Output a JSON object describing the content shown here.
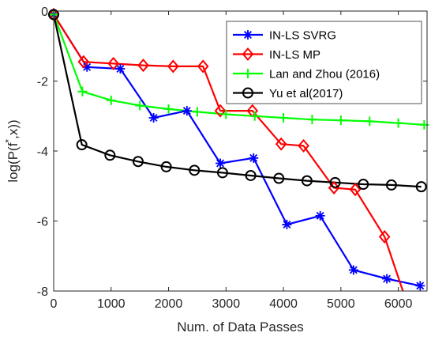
{
  "chart_data": {
    "type": "line",
    "xlabel": "Num. of Data Passes",
    "ylabel": "log(P(f*,x))",
    "ylabel_base": "log(P(f",
    "ylabel_sup": "*",
    "ylabel_tail": ",x))",
    "xlim": [
      0,
      6500
    ],
    "ylim": [
      -8,
      0
    ],
    "xticks": [
      "0",
      "1000",
      "2000",
      "3000",
      "4000",
      "5000",
      "6000"
    ],
    "yticks": [
      "0",
      "-2",
      "-4",
      "-6",
      "-8"
    ],
    "legend_position": "top-right",
    "series": [
      {
        "name": "IN-LS SVRG",
        "color": "#0000ff",
        "marker": "asterisk",
        "x": [
          0,
          580,
          1160,
          1740,
          2320,
          2900,
          3480,
          4060,
          4640,
          5220,
          5800,
          6380
        ],
        "y": [
          -0.1,
          -1.6,
          -1.65,
          -3.05,
          -2.85,
          -4.35,
          -4.2,
          -6.1,
          -5.85,
          -7.4,
          -7.65,
          -7.85
        ]
      },
      {
        "name": "IN-LS MP",
        "color": "#ff0000",
        "marker": "diamond",
        "x": [
          0,
          520,
          1040,
          1560,
          2080,
          2600,
          2900,
          3460,
          3960,
          4350,
          4880,
          5250,
          5760,
          6100
        ],
        "y": [
          -0.1,
          -1.45,
          -1.5,
          -1.55,
          -1.58,
          -1.58,
          -2.85,
          -2.85,
          -3.8,
          -3.85,
          -5.05,
          -5.1,
          -6.45,
          -8.1
        ]
      },
      {
        "name": "Lan and Zhou (2016)",
        "color": "#00ff00",
        "marker": "plus",
        "x": [
          0,
          500,
          1000,
          1500,
          2000,
          2500,
          3000,
          3500,
          4000,
          4500,
          5000,
          5500,
          6000,
          6450
        ],
        "y": [
          -0.1,
          -2.3,
          -2.55,
          -2.7,
          -2.8,
          -2.88,
          -2.95,
          -3.0,
          -3.05,
          -3.1,
          -3.12,
          -3.15,
          -3.2,
          -3.25
        ]
      },
      {
        "name": "Yu et al(2017)",
        "color": "#000000",
        "marker": "circle",
        "x": [
          0,
          490,
          980,
          1470,
          1960,
          2450,
          2940,
          3430,
          3920,
          4410,
          4900,
          5390,
          5880,
          6400
        ],
        "y": [
          -0.1,
          -3.82,
          -4.12,
          -4.3,
          -4.45,
          -4.55,
          -4.62,
          -4.7,
          -4.78,
          -4.85,
          -4.9,
          -4.95,
          -4.97,
          -5.02
        ]
      }
    ]
  }
}
